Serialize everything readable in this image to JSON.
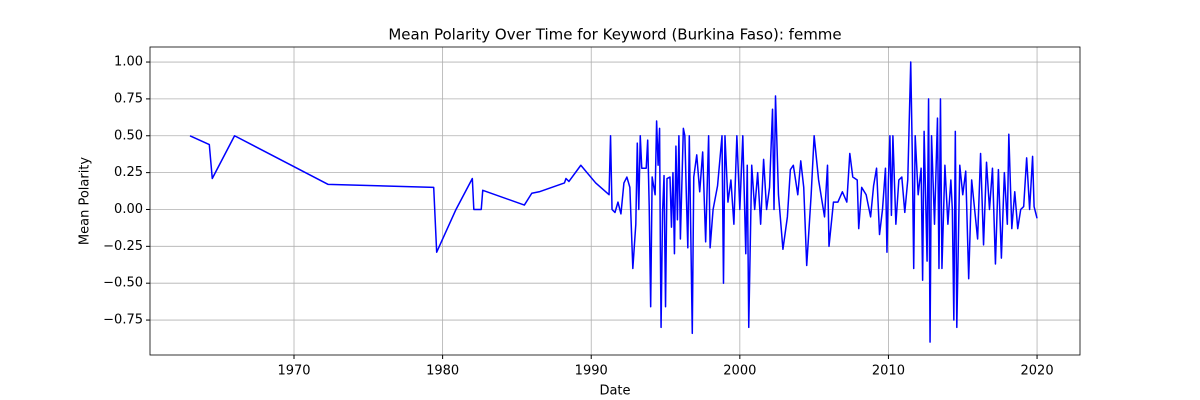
{
  "chart_data": {
    "type": "line",
    "title": "Mean Polarity Over Time for Keyword (Burkina Faso): femme",
    "x_label": "Date",
    "y_label": "Mean Polarity",
    "color": "#0000ff",
    "grid": true,
    "xlim": [
      1960.31,
      2022.89
    ],
    "ylim": [
      -0.987,
      1.102
    ],
    "xticks": [
      1970,
      1980,
      1990,
      2000,
      2010,
      2020
    ],
    "yticks": [
      {
        "value": -0.75,
        "label": "−0.75"
      },
      {
        "value": -0.5,
        "label": "−0.50"
      },
      {
        "value": -0.25,
        "label": "−0.25"
      },
      {
        "value": 0,
        "label": "0.00"
      },
      {
        "value": 0.25,
        "label": "0.25"
      },
      {
        "value": 0.5,
        "label": "0.50"
      },
      {
        "value": 0.75,
        "label": "0.75"
      },
      {
        "value": 1,
        "label": "1.00"
      }
    ],
    "x": [
      1963.0,
      1964.3,
      1964.5,
      1966.0,
      1972.3,
      1979.4,
      1979.6,
      1980.9,
      1982.0,
      1982.1,
      1982.6,
      1982.7,
      1985.5,
      1986.0,
      1986.5,
      1988.2,
      1988.3,
      1988.5,
      1989.3,
      1990.3,
      1991.2,
      1991.3,
      1991.4,
      1991.6,
      1991.8,
      1992.0,
      1992.2,
      1992.4,
      1992.6,
      1992.8,
      1993.0,
      1993.1,
      1993.2,
      1993.3,
      1993.4,
      1993.7,
      1993.8,
      1993.9,
      1994.0,
      1994.1,
      1994.3,
      1994.4,
      1994.5,
      1994.6,
      1994.65,
      1994.7,
      1994.8,
      1994.9,
      1995.0,
      1995.1,
      1995.3,
      1995.4,
      1995.5,
      1995.6,
      1995.7,
      1995.8,
      1995.9,
      1996.0,
      1996.2,
      1996.3,
      1996.4,
      1996.5,
      1996.6,
      1996.8,
      1996.9,
      1997.1,
      1997.3,
      1997.5,
      1997.7,
      1997.9,
      1998.0,
      1998.2,
      1998.5,
      1998.8,
      1998.9,
      1999.0,
      1999.2,
      1999.4,
      1999.6,
      1999.8,
      2000.0,
      2000.2,
      2000.4,
      2000.5,
      2000.6,
      2000.8,
      2001.0,
      2001.2,
      2001.4,
      2001.6,
      2001.8,
      2002.0,
      2002.2,
      2002.3,
      2002.4,
      2002.6,
      2002.9,
      2003.2,
      2003.4,
      2003.6,
      2003.9,
      2004.1,
      2004.3,
      2004.5,
      2004.8,
      2005.0,
      2005.3,
      2005.7,
      2005.9,
      2006.0,
      2006.3,
      2006.6,
      2006.9,
      2007.2,
      2007.4,
      2007.6,
      2007.9,
      2008.0,
      2008.2,
      2008.5,
      2008.8,
      2009.0,
      2009.2,
      2009.4,
      2009.6,
      2009.8,
      2009.9,
      2010.0,
      2010.1,
      2010.2,
      2010.3,
      2010.5,
      2010.7,
      2010.9,
      2011.1,
      2011.3,
      2011.5,
      2011.6,
      2011.7,
      2011.8,
      2012.0,
      2012.2,
      2012.3,
      2012.4,
      2012.6,
      2012.7,
      2012.8,
      2012.9,
      2013.1,
      2013.3,
      2013.4,
      2013.5,
      2013.6,
      2013.8,
      2014.0,
      2014.2,
      2014.3,
      2014.4,
      2014.5,
      2014.6,
      2014.8,
      2015.0,
      2015.2,
      2015.4,
      2015.6,
      2015.8,
      2016.0,
      2016.2,
      2016.4,
      2016.6,
      2016.8,
      2017.0,
      2017.2,
      2017.4,
      2017.6,
      2017.8,
      2018.0,
      2018.1,
      2018.3,
      2018.5,
      2018.7,
      2018.9,
      2019.1,
      2019.3,
      2019.5,
      2019.7,
      2019.8,
      2020.0
    ],
    "values": [
      0.5,
      0.44,
      0.21,
      0.5,
      0.17,
      0.15,
      -0.29,
      0.0,
      0.21,
      0.0,
      0.0,
      0.13,
      0.03,
      0.11,
      0.12,
      0.18,
      0.21,
      0.19,
      0.3,
      0.18,
      0.1,
      0.5,
      0.0,
      -0.02,
      0.05,
      -0.03,
      0.18,
      0.22,
      0.15,
      -0.4,
      -0.1,
      0.45,
      0.0,
      0.5,
      0.28,
      0.28,
      0.47,
      0.03,
      -0.66,
      0.22,
      0.1,
      0.6,
      0.3,
      0.55,
      -0.23,
      -0.8,
      -0.02,
      0.23,
      -0.66,
      0.21,
      0.22,
      -0.12,
      0.25,
      -0.3,
      0.43,
      -0.07,
      0.5,
      -0.2,
      0.55,
      0.5,
      0.1,
      -0.26,
      0.5,
      -0.84,
      0.22,
      0.37,
      0.12,
      0.39,
      -0.22,
      0.5,
      -0.26,
      0.0,
      0.16,
      0.5,
      -0.5,
      0.5,
      0.05,
      0.2,
      -0.1,
      0.5,
      0.0,
      0.5,
      -0.3,
      0.3,
      -0.8,
      0.3,
      0.0,
      0.25,
      -0.1,
      0.34,
      0.0,
      0.15,
      0.68,
      0.0,
      0.77,
      0.1,
      -0.27,
      -0.05,
      0.27,
      0.3,
      0.1,
      0.33,
      0.15,
      -0.38,
      0.1,
      0.5,
      0.2,
      -0.05,
      0.3,
      -0.25,
      0.05,
      0.05,
      0.12,
      0.05,
      0.38,
      0.22,
      0.2,
      -0.13,
      0.15,
      0.1,
      -0.05,
      0.16,
      0.28,
      -0.17,
      0.0,
      0.28,
      -0.29,
      0.2,
      0.5,
      -0.04,
      0.5,
      -0.1,
      0.2,
      0.22,
      -0.02,
      0.2,
      1.0,
      0.4,
      -0.4,
      0.5,
      0.1,
      0.28,
      -0.48,
      0.53,
      -0.35,
      0.75,
      -0.9,
      0.5,
      -0.1,
      0.62,
      -0.4,
      0.75,
      -0.4,
      0.3,
      -0.1,
      0.2,
      0.0,
      -0.75,
      0.53,
      -0.8,
      0.3,
      0.1,
      0.26,
      -0.47,
      0.2,
      0.0,
      -0.2,
      0.38,
      -0.24,
      0.32,
      0.0,
      0.28,
      -0.37,
      0.27,
      -0.33,
      0.25,
      -0.1,
      0.51,
      -0.13,
      0.12,
      -0.13,
      0.0,
      0.02,
      0.35,
      0.0,
      0.36,
      0.02,
      -0.06
    ]
  }
}
